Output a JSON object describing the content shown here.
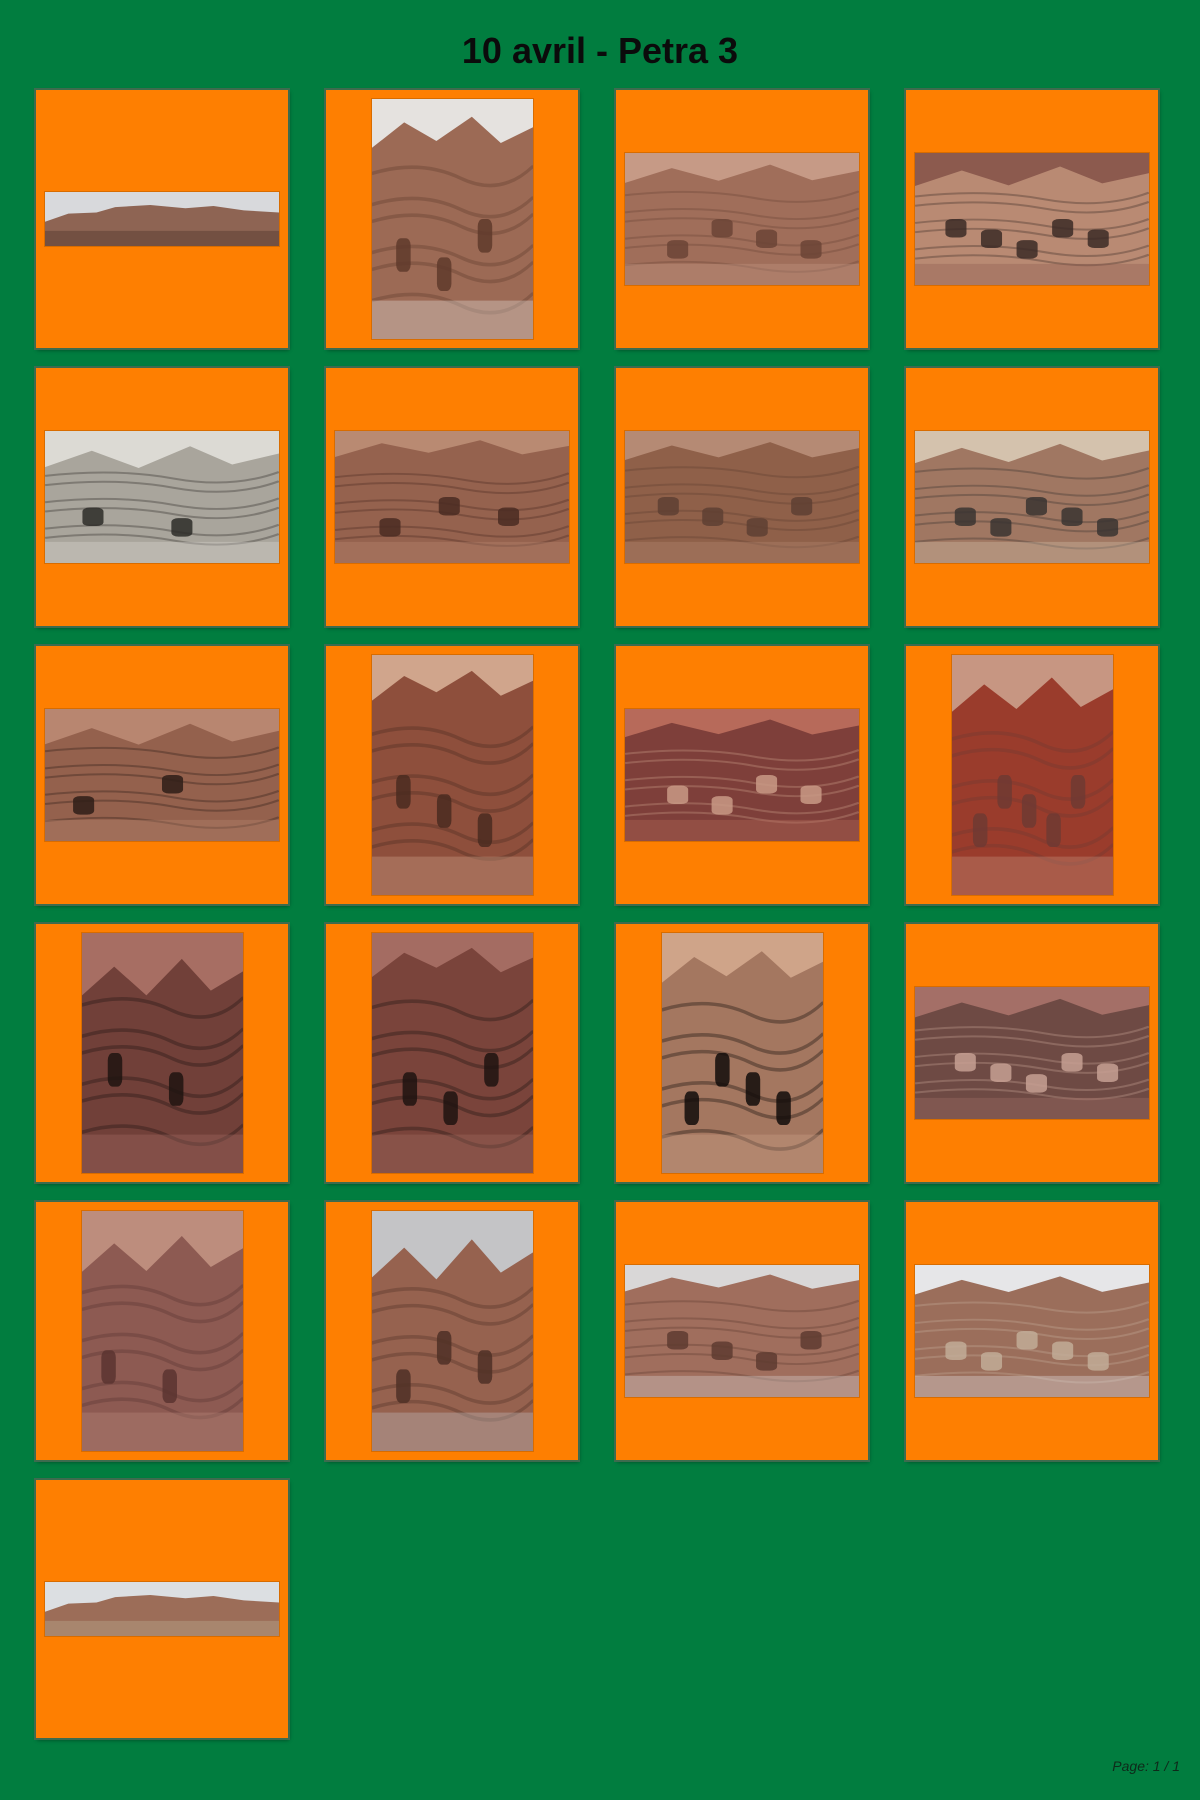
{
  "page": {
    "title": "10 avril - Petra 3",
    "footer": "Page: 1 / 1",
    "background_color": "#017d3f",
    "card_color": "#fe7f01"
  },
  "thumbnails": [
    {
      "name": "photo-01",
      "orientation": "panorama",
      "subject": "wide view of rock cliffs and village",
      "palette": [
        "#d8d9dc",
        "#8e6453",
        "#5c4035"
      ]
    },
    {
      "name": "photo-02",
      "orientation": "portrait",
      "subject": "narrow gorge with carved facade and tourists",
      "palette": [
        "#e5e2df",
        "#9c6a55",
        "#5f3a2c"
      ]
    },
    {
      "name": "photo-03",
      "orientation": "landscape",
      "subject": "cliff face with cave tombs and tourist group",
      "palette": [
        "#c69a86",
        "#a06e5a",
        "#6b4436"
      ]
    },
    {
      "name": "photo-04",
      "orientation": "landscape",
      "subject": "multicoloured sandstone wall with cavities",
      "palette": [
        "#8c5a4e",
        "#b98a73",
        "#3b2a26"
      ]
    },
    {
      "name": "photo-05",
      "orientation": "landscape",
      "subject": "information panel with site plan",
      "palette": [
        "#dcdad4",
        "#a9a59c",
        "#2d2b28"
      ]
    },
    {
      "name": "photo-06",
      "orientation": "landscape",
      "subject": "rock tombs carved in cliff",
      "palette": [
        "#b98a72",
        "#95624e",
        "#4a2c22"
      ]
    },
    {
      "name": "photo-07",
      "orientation": "landscape",
      "subject": "climber on rocky slope",
      "palette": [
        "#b58a74",
        "#8f6049",
        "#5e4032"
      ]
    },
    {
      "name": "photo-08",
      "orientation": "landscape",
      "subject": "hikers standing before theatre",
      "palette": [
        "#d4c2ad",
        "#a07762",
        "#3a3431"
      ]
    },
    {
      "name": "photo-09",
      "orientation": "landscape",
      "subject": "honeycomb of cave openings",
      "palette": [
        "#b88670",
        "#94614d",
        "#2e1d18"
      ]
    },
    {
      "name": "photo-10",
      "orientation": "portrait",
      "subject": "two hikers under rock overhang",
      "palette": [
        "#d0a58c",
        "#8e4f3c",
        "#4a2a20"
      ]
    },
    {
      "name": "photo-11",
      "orientation": "landscape",
      "subject": "close-up of swirling coloured rock",
      "palette": [
        "#b76a5a",
        "#7e3f3a",
        "#c99a86"
      ]
    },
    {
      "name": "photo-12",
      "orientation": "portrait",
      "subject": "close-up of red veined rock",
      "palette": [
        "#c79682",
        "#9a3c2c",
        "#6e3a33"
      ]
    },
    {
      "name": "photo-13",
      "orientation": "portrait",
      "subject": "hiker in front of striped cleft",
      "palette": [
        "#a76e63",
        "#714039",
        "#1f1411"
      ]
    },
    {
      "name": "photo-14",
      "orientation": "portrait",
      "subject": "couple in front of striped cleft",
      "palette": [
        "#a46c62",
        "#7a443b",
        "#1e1310"
      ]
    },
    {
      "name": "photo-15",
      "orientation": "portrait",
      "subject": "three people at carved tomb doorway",
      "palette": [
        "#cfa489",
        "#a47760",
        "#120c0a"
      ]
    },
    {
      "name": "photo-16",
      "orientation": "landscape",
      "subject": "eroded rock wall with colours",
      "palette": [
        "#a46f67",
        "#6e4a44",
        "#c7a093"
      ]
    },
    {
      "name": "photo-17",
      "orientation": "portrait",
      "subject": "person beside carved rock pillar",
      "palette": [
        "#bd8d7d",
        "#8d5a52",
        "#5a3430"
      ]
    },
    {
      "name": "photo-18",
      "orientation": "portrait",
      "subject": "royal tombs facade",
      "palette": [
        "#c4c4c6",
        "#96624f",
        "#4f3026"
      ]
    },
    {
      "name": "photo-19",
      "orientation": "landscape",
      "subject": "rounded sandstone hills with tombs",
      "palette": [
        "#d9d7d7",
        "#a06e5d",
        "#5e3b30"
      ]
    },
    {
      "name": "photo-20",
      "orientation": "landscape",
      "subject": "royal tombs and valley panorama",
      "palette": [
        "#e6e6e8",
        "#9b6e5b",
        "#c2ad98"
      ]
    },
    {
      "name": "photo-21",
      "orientation": "panorama",
      "subject": "wide valley with mesas",
      "palette": [
        "#dcdfe2",
        "#9c6d58",
        "#b39a82"
      ]
    }
  ]
}
